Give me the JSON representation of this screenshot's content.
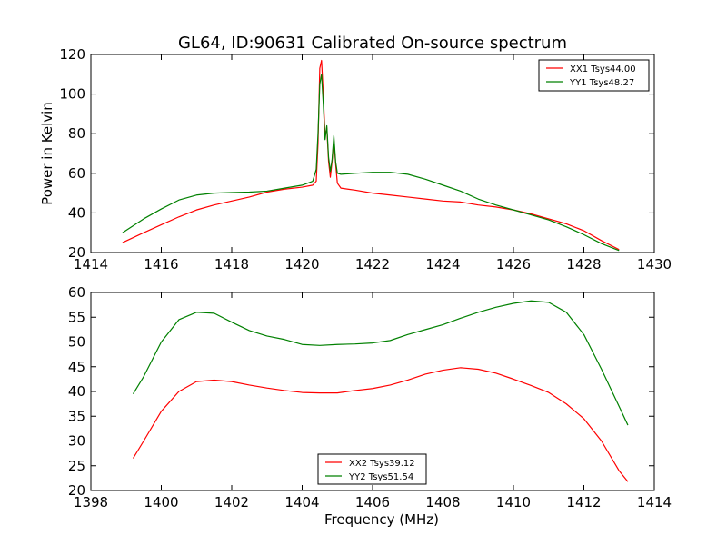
{
  "figure": {
    "title": "GL64, ID:90631 Calibrated On-source spectrum"
  },
  "colors": {
    "red": "#ff0000",
    "green": "#008000"
  },
  "chart_data": [
    {
      "type": "line",
      "title": "GL64, ID:90631 Calibrated On-source spectrum",
      "xlabel": "",
      "ylabel": "Power in Kelvin",
      "xlim": [
        1414,
        1430
      ],
      "ylim": [
        20,
        120
      ],
      "xticks": [
        "1414",
        "1416",
        "1418",
        "1420",
        "1422",
        "1424",
        "1426",
        "1428",
        "1430"
      ],
      "yticks": [
        "20",
        "40",
        "60",
        "80",
        "100",
        "120"
      ],
      "legend_position": "top-right",
      "grid": false,
      "series": [
        {
          "name": "XX1 Tsys44.00",
          "color": "#ff0000",
          "points": [
            [
              1414.9,
              25
            ],
            [
              1415.5,
              30
            ],
            [
              1416.0,
              34
            ],
            [
              1416.5,
              38
            ],
            [
              1417.0,
              41.5
            ],
            [
              1417.5,
              44
            ],
            [
              1418.0,
              46
            ],
            [
              1418.5,
              48
            ],
            [
              1419.0,
              50.5
            ],
            [
              1419.5,
              52
            ],
            [
              1420.0,
              53
            ],
            [
              1420.3,
              54
            ],
            [
              1420.4,
              56
            ],
            [
              1420.45,
              75
            ],
            [
              1420.5,
              113
            ],
            [
              1420.55,
              117
            ],
            [
              1420.6,
              100
            ],
            [
              1420.65,
              79
            ],
            [
              1420.7,
              83
            ],
            [
              1420.75,
              66
            ],
            [
              1420.8,
              58
            ],
            [
              1420.85,
              66
            ],
            [
              1420.9,
              77
            ],
            [
              1420.95,
              65
            ],
            [
              1421.0,
              55
            ],
            [
              1421.1,
              52.5
            ],
            [
              1421.3,
              52
            ],
            [
              1421.5,
              51.5
            ],
            [
              1422.0,
              50
            ],
            [
              1422.5,
              49
            ],
            [
              1423.0,
              48
            ],
            [
              1423.5,
              47
            ],
            [
              1424.0,
              46
            ],
            [
              1424.5,
              45.5
            ],
            [
              1425.0,
              44
            ],
            [
              1425.5,
              43
            ],
            [
              1426.0,
              41.5
            ],
            [
              1426.5,
              39.5
            ],
            [
              1427.0,
              37
            ],
            [
              1427.5,
              34.5
            ],
            [
              1428.0,
              31
            ],
            [
              1428.5,
              26
            ],
            [
              1429.0,
              21.5
            ]
          ]
        },
        {
          "name": "YY1 Tsys48.27",
          "color": "#008000",
          "points": [
            [
              1414.9,
              30
            ],
            [
              1415.5,
              37
            ],
            [
              1416.0,
              42
            ],
            [
              1416.5,
              46.5
            ],
            [
              1417.0,
              49
            ],
            [
              1417.5,
              50
            ],
            [
              1418.0,
              50.3
            ],
            [
              1418.5,
              50.5
            ],
            [
              1419.0,
              51
            ],
            [
              1419.5,
              52.5
            ],
            [
              1420.0,
              54
            ],
            [
              1420.3,
              56
            ],
            [
              1420.4,
              62
            ],
            [
              1420.45,
              80
            ],
            [
              1420.5,
              105
            ],
            [
              1420.55,
              110
            ],
            [
              1420.6,
              95
            ],
            [
              1420.65,
              77
            ],
            [
              1420.7,
              84
            ],
            [
              1420.75,
              68
            ],
            [
              1420.8,
              61
            ],
            [
              1420.85,
              67
            ],
            [
              1420.9,
              79
            ],
            [
              1420.95,
              66
            ],
            [
              1421.0,
              60
            ],
            [
              1421.1,
              59.5
            ],
            [
              1421.5,
              60
            ],
            [
              1422.0,
              60.5
            ],
            [
              1422.5,
              60.5
            ],
            [
              1423.0,
              59.5
            ],
            [
              1423.5,
              57
            ],
            [
              1424.0,
              54
            ],
            [
              1424.5,
              51
            ],
            [
              1425.0,
              47
            ],
            [
              1425.5,
              44
            ],
            [
              1426.0,
              41.5
            ],
            [
              1426.5,
              39
            ],
            [
              1427.0,
              36.5
            ],
            [
              1427.5,
              33
            ],
            [
              1428.0,
              29
            ],
            [
              1428.5,
              24.5
            ],
            [
              1429.0,
              21
            ]
          ]
        }
      ]
    },
    {
      "type": "line",
      "title": "",
      "xlabel": "Frequency (MHz)",
      "ylabel": "",
      "xlim": [
        1398,
        1414
      ],
      "ylim": [
        20,
        60
      ],
      "xticks": [
        "1398",
        "1400",
        "1402",
        "1404",
        "1406",
        "1408",
        "1410",
        "1412",
        "1414"
      ],
      "yticks": [
        "20",
        "25",
        "30",
        "35",
        "40",
        "45",
        "50",
        "55",
        "60"
      ],
      "legend_position": "bottom-center",
      "grid": false,
      "series": [
        {
          "name": "XX2 Tsys39.12",
          "color": "#ff0000",
          "points": [
            [
              1399.2,
              26.5
            ],
            [
              1399.5,
              30
            ],
            [
              1400.0,
              36
            ],
            [
              1400.5,
              40
            ],
            [
              1401.0,
              42
            ],
            [
              1401.5,
              42.3
            ],
            [
              1402.0,
              42
            ],
            [
              1402.5,
              41.3
            ],
            [
              1403.0,
              40.7
            ],
            [
              1403.5,
              40.2
            ],
            [
              1404.0,
              39.8
            ],
            [
              1404.5,
              39.7
            ],
            [
              1405.0,
              39.7
            ],
            [
              1405.5,
              40.2
            ],
            [
              1406.0,
              40.6
            ],
            [
              1406.5,
              41.3
            ],
            [
              1407.0,
              42.3
            ],
            [
              1407.5,
              43.5
            ],
            [
              1408.0,
              44.3
            ],
            [
              1408.5,
              44.8
            ],
            [
              1409.0,
              44.5
            ],
            [
              1409.5,
              43.7
            ],
            [
              1410.0,
              42.5
            ],
            [
              1410.5,
              41.2
            ],
            [
              1411.0,
              39.8
            ],
            [
              1411.5,
              37.5
            ],
            [
              1412.0,
              34.5
            ],
            [
              1412.5,
              30
            ],
            [
              1413.0,
              24
            ],
            [
              1413.25,
              21.8
            ]
          ]
        },
        {
          "name": "YY2 Tsys51.54",
          "color": "#008000",
          "points": [
            [
              1399.2,
              39.5
            ],
            [
              1399.5,
              43
            ],
            [
              1400.0,
              50
            ],
            [
              1400.5,
              54.5
            ],
            [
              1401.0,
              56
            ],
            [
              1401.5,
              55.8
            ],
            [
              1402.0,
              54
            ],
            [
              1402.5,
              52.3
            ],
            [
              1403.0,
              51.2
            ],
            [
              1403.5,
              50.5
            ],
            [
              1404.0,
              49.5
            ],
            [
              1404.5,
              49.3
            ],
            [
              1405.0,
              49.5
            ],
            [
              1405.5,
              49.6
            ],
            [
              1406.0,
              49.8
            ],
            [
              1406.5,
              50.3
            ],
            [
              1407.0,
              51.5
            ],
            [
              1407.5,
              52.5
            ],
            [
              1408.0,
              53.5
            ],
            [
              1408.5,
              54.8
            ],
            [
              1409.0,
              56
            ],
            [
              1409.5,
              57
            ],
            [
              1410.0,
              57.8
            ],
            [
              1410.5,
              58.3
            ],
            [
              1411.0,
              58
            ],
            [
              1411.5,
              56
            ],
            [
              1412.0,
              51.5
            ],
            [
              1412.5,
              44.5
            ],
            [
              1413.0,
              37
            ],
            [
              1413.25,
              33.2
            ]
          ]
        }
      ]
    }
  ]
}
